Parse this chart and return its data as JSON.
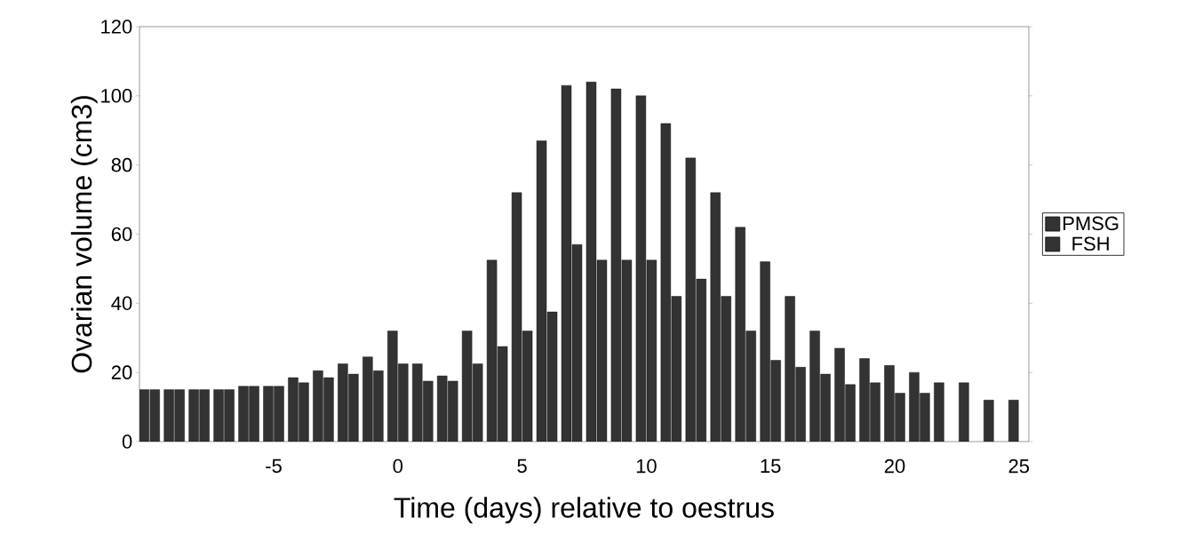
{
  "chart_data": {
    "type": "bar",
    "xlabel": "Time (days) relative to oestrus",
    "ylabel": "Ovarian volume (cm3)",
    "x": [
      -10,
      -9,
      -8,
      -7,
      -6,
      -5,
      -4,
      -3,
      -2,
      -1,
      0,
      1,
      2,
      3,
      4,
      5,
      6,
      7,
      8,
      9,
      10,
      11,
      12,
      13,
      14,
      15,
      16,
      17,
      18,
      19,
      20,
      21,
      22,
      23,
      24,
      25
    ],
    "series": [
      {
        "name": "PMSG",
        "color": "#333333",
        "values": [
          15,
          15,
          15,
          15,
          16,
          16,
          18.5,
          20.5,
          22.5,
          24.5,
          32,
          22.5,
          19,
          32,
          52.5,
          72,
          87,
          103,
          104,
          102,
          100,
          92,
          82,
          72,
          62,
          52,
          42,
          32,
          27,
          24,
          22,
          20,
          17,
          17,
          12,
          12
        ]
      },
      {
        "name": "FSH",
        "color": "#333333",
        "values": [
          15,
          15,
          15,
          15,
          16,
          16,
          17,
          18.5,
          19.5,
          20.5,
          22.5,
          17.5,
          17.5,
          22.5,
          27.5,
          32,
          37.5,
          57,
          52.5,
          52.5,
          52.5,
          42,
          47,
          42,
          32,
          23.5,
          21.5,
          19.5,
          16.5,
          17,
          14,
          14,
          null,
          null,
          null,
          null
        ]
      }
    ],
    "xlim": [
      -10.4,
      25.4
    ],
    "ylim": [
      0,
      120
    ],
    "xticks": [
      -5,
      0,
      5,
      10,
      15,
      20,
      25
    ],
    "yticks": [
      0,
      20,
      40,
      60,
      80,
      100,
      120
    ],
    "legend": "right"
  }
}
